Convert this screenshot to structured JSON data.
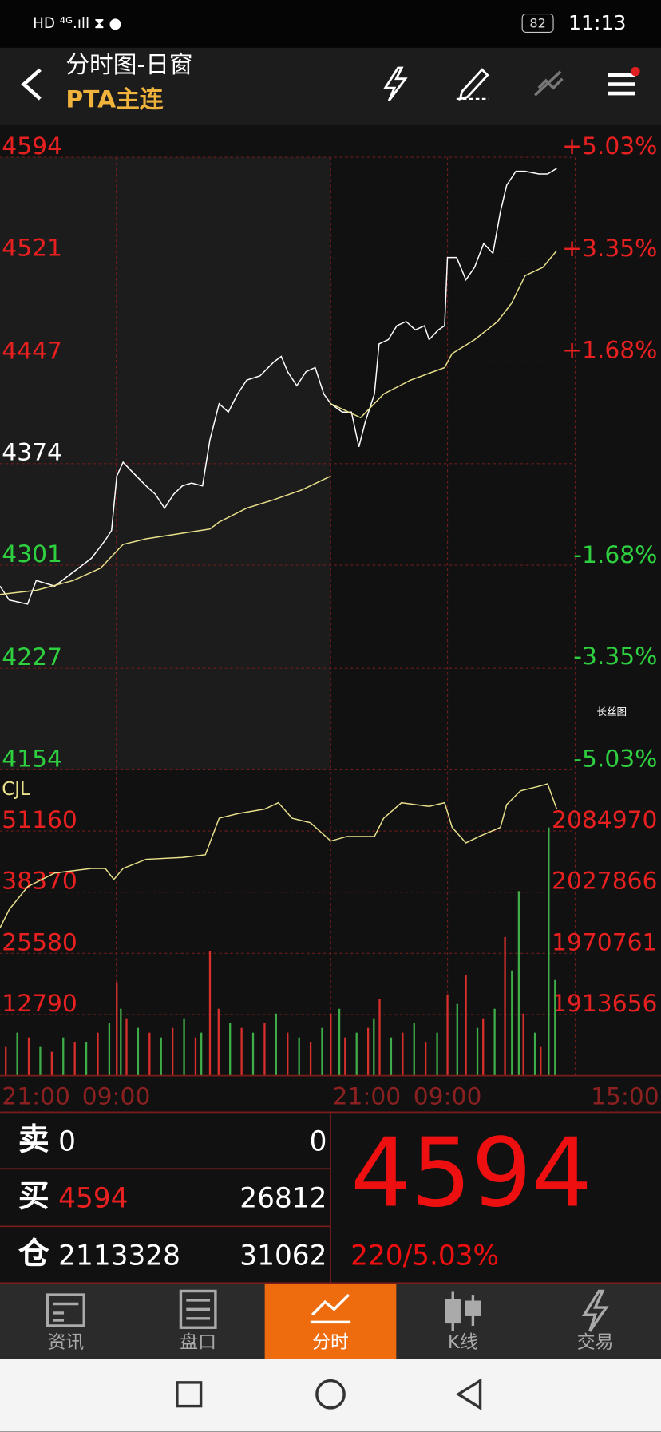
{
  "status_bar": {
    "time": "11:13",
    "battery": "82"
  },
  "header": {
    "title": "分时图-日窗",
    "subtitle": "PTA主连"
  },
  "chart_data": [
    {
      "type": "line",
      "xlim": [
        0,
        100
      ],
      "ylim": [
        4154,
        4594
      ],
      "yticks": [
        4154,
        4227,
        4301,
        4374,
        4447,
        4521,
        4594
      ],
      "y2lim": [
        -5.03,
        5.03
      ],
      "y2ticks": [
        {
          "value": -5.03,
          "label": "-5.03%"
        },
        {
          "value": -3.35,
          "label": "-3.35%"
        },
        {
          "value": -1.68,
          "label": "-1.68%"
        },
        {
          "value": 1.68,
          "label": "+1.68%"
        },
        {
          "value": 3.35,
          "label": "+3.35%"
        },
        {
          "value": 5.03,
          "label": "+5.03%"
        }
      ],
      "grid": true,
      "series": [
        {
          "color": "#ffffff",
          "x": [
            0,
            1.6,
            4.8,
            6.3,
            9.5,
            12.7,
            15.9,
            18.3,
            19.4,
            20.3,
            21.4,
            23,
            25.4,
            27,
            28.6,
            30.2,
            31.7,
            33.3,
            35.2,
            36.5,
            38.1,
            39.7,
            41.3,
            42.9,
            45.2,
            47.6,
            48.9,
            50,
            51.6,
            53.2,
            54.8,
            56.3,
            57.5,
            59.5,
            61.1,
            62.4,
            63.5,
            65.1,
            65.9,
            67.5,
            69,
            70.6,
            72.2,
            73.8,
            74.6,
            76.2,
            77.3,
            77.8,
            79.4,
            81,
            82.5,
            84.1,
            85.7,
            87,
            88.1,
            89.7,
            91.3,
            93.7,
            95.2,
            96.8
          ],
          "values": [
            4286,
            4276,
            4273,
            4290,
            4286,
            4296,
            4306,
            4319,
            4326,
            4365,
            4375,
            4368,
            4358,
            4352,
            4342,
            4352,
            4358,
            4360,
            4358,
            4391,
            4417,
            4411,
            4424,
            4434,
            4437,
            4447,
            4451,
            4440,
            4430,
            4440,
            4443,
            4424,
            4417,
            4411,
            4411,
            4386,
            4404,
            4424,
            4460,
            4463,
            4473,
            4476,
            4470,
            4473,
            4463,
            4470,
            4473,
            4522,
            4522,
            4506,
            4515,
            4532,
            4525,
            4555,
            4574,
            4584,
            4584,
            4582,
            4582,
            4586
          ]
        },
        {
          "color": "#e8e08a",
          "x": [
            0,
            6.3,
            12.7,
            17.5,
            19.8,
            21.4,
            25.4,
            31.7,
            36.5,
            38.1,
            42.9,
            47.6,
            52.4,
            57.5,
            57.5,
            57.5,
            62.7,
            66.7,
            71.4,
            77.3,
            78.6,
            82.5,
            86.5,
            88.9,
            91.3,
            94.4,
            96.8
          ],
          "values": [
            4280,
            4283,
            4290,
            4299,
            4309,
            4316,
            4320,
            4324,
            4327,
            4332,
            4342,
            4348,
            4355,
            4365,
            null,
            4417,
            4407,
            4424,
            4434,
            4443,
            4453,
            4463,
            4476,
            4489,
            4509,
            4515,
            4527
          ]
        }
      ],
      "annotation": "长丝图"
    },
    {
      "type": "bar",
      "label": "CJL",
      "xlim": [
        0,
        100
      ],
      "xticks": [
        {
          "value": 0,
          "label": "21:00"
        },
        {
          "value": 20.2,
          "label": "09:00"
        },
        {
          "value": 57.5,
          "label": "21:00"
        },
        {
          "value": 77.8,
          "label": "09:00"
        },
        {
          "value": 100,
          "label": "15:00"
        }
      ],
      "ylim": [
        0,
        63570
      ],
      "yticks": [
        12790,
        25580,
        38370,
        51160
      ],
      "y2lim": [
        1856551,
        2140367
      ],
      "y2ticks": [
        1913656,
        1970761,
        2027866,
        2084970
      ],
      "grid": true,
      "series": [
        {
          "color": "#d9302c",
          "x": [
            1,
            5,
            9,
            13,
            17,
            20.3,
            22,
            26,
            30,
            34,
            36.5,
            38,
            42,
            46,
            50,
            54,
            57.5,
            60,
            64,
            66,
            70,
            74,
            77.8,
            81,
            84,
            87.8,
            91,
            94
          ],
          "values": [
            6000,
            8000,
            5000,
            7000,
            9000,
            19500,
            12000,
            9000,
            10000,
            8000,
            26000,
            14000,
            10000,
            11000,
            9000,
            7000,
            13000,
            8000,
            10000,
            16000,
            9000,
            7000,
            17000,
            21000,
            12000,
            29000,
            13000,
            6000
          ]
        },
        {
          "color": "#3fae49",
          "x": [
            3,
            7,
            11,
            15,
            19,
            21,
            24,
            28,
            32,
            35,
            40,
            44,
            48,
            52,
            56,
            59,
            62,
            65,
            68,
            72,
            76,
            79.5,
            83,
            86,
            89,
            90.2,
            93,
            95.4,
            96.5
          ],
          "values": [
            9000,
            6000,
            8000,
            7000,
            11000,
            14000,
            10000,
            8000,
            12000,
            9000,
            11000,
            9000,
            13000,
            8000,
            10000,
            14000,
            9000,
            12000,
            8000,
            11000,
            9000,
            15000,
            10000,
            14000,
            22000,
            38600,
            9000,
            51900,
            20000
          ]
        },
        {
          "color": "#e8e08a",
          "axis": "y2",
          "x": [
            0,
            1.6,
            4.8,
            9.5,
            15.9,
            18.3,
            19.8,
            21.4,
            25.4,
            31.7,
            35.7,
            38.1,
            41.3,
            46,
            48.4,
            50.8,
            54,
            57.5,
            60.3,
            65.1,
            66.7,
            69.8,
            74.6,
            77.3,
            78.6,
            81,
            83.3,
            87,
            88.1,
            90.5,
            93.7,
            95.2,
            96.8
          ],
          "values": [
            1994600,
            2011670,
            2032977,
            2045762,
            2050023,
            2050023,
            2039796,
            2050023,
            2058546,
            2060251,
            2062808,
            2096900,
            2101161,
            2105423,
            2111389,
            2096900,
            2092638,
            2075592,
            2079854,
            2079854,
            2096900,
            2111389,
            2107980,
            2111389,
            2088377,
            2073888,
            2079854,
            2088377,
            2109684,
            2122469,
            2126730,
            2129000,
            2105423
          ]
        }
      ]
    }
  ],
  "quote": {
    "rows": [
      {
        "label": "卖",
        "price": 0,
        "volume": 0
      },
      {
        "label": "买",
        "price": 4594,
        "volume": 26812
      },
      {
        "label": "仓",
        "price": 2113328,
        "volume": 31062
      }
    ],
    "last": 4594,
    "change": "220/5.03%"
  },
  "tabs": [
    "资讯",
    "盘口",
    "分时",
    "K线",
    "交易"
  ]
}
